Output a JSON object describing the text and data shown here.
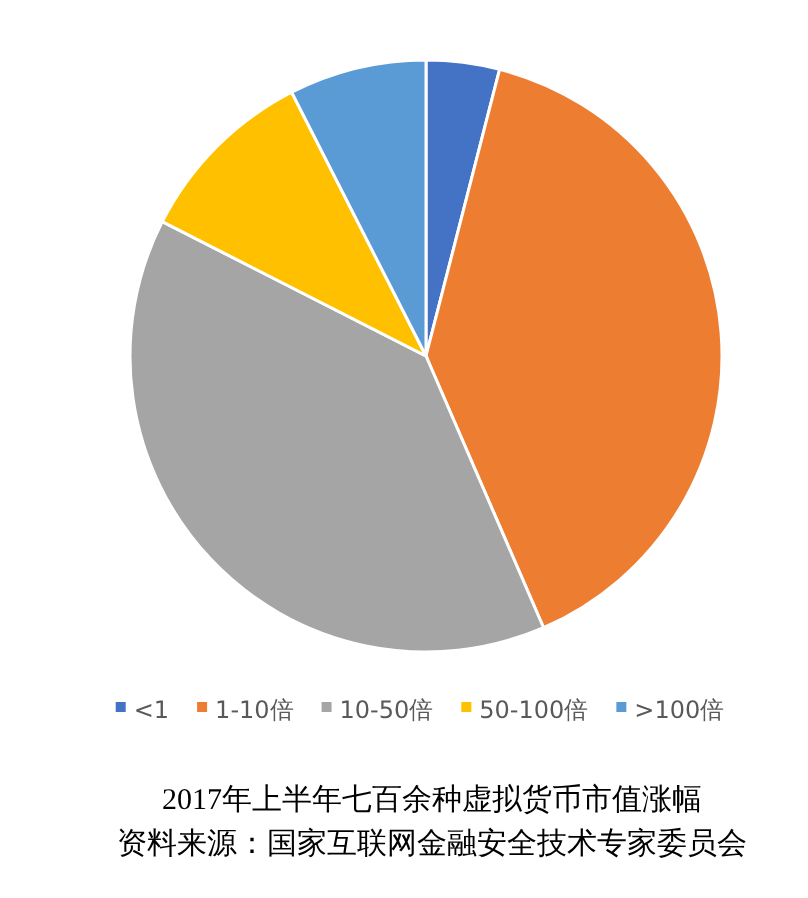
{
  "chart_data": {
    "type": "pie",
    "title": "2017年上半年七百余种虚拟货币市值涨幅",
    "categories": [
      "<1",
      "1-10倍",
      "10-50倍",
      "50-100倍",
      ">100倍"
    ],
    "values": [
      4,
      39.5,
      39,
      10,
      7.5
    ],
    "colors": [
      "#4472c4",
      "#ed7d31",
      "#a5a5a5",
      "#ffc000",
      "#5b9bd5"
    ],
    "legend": "bottom",
    "annotations": [
      "资料来源：国家互联网金融安全技术专家委员会"
    ]
  }
}
